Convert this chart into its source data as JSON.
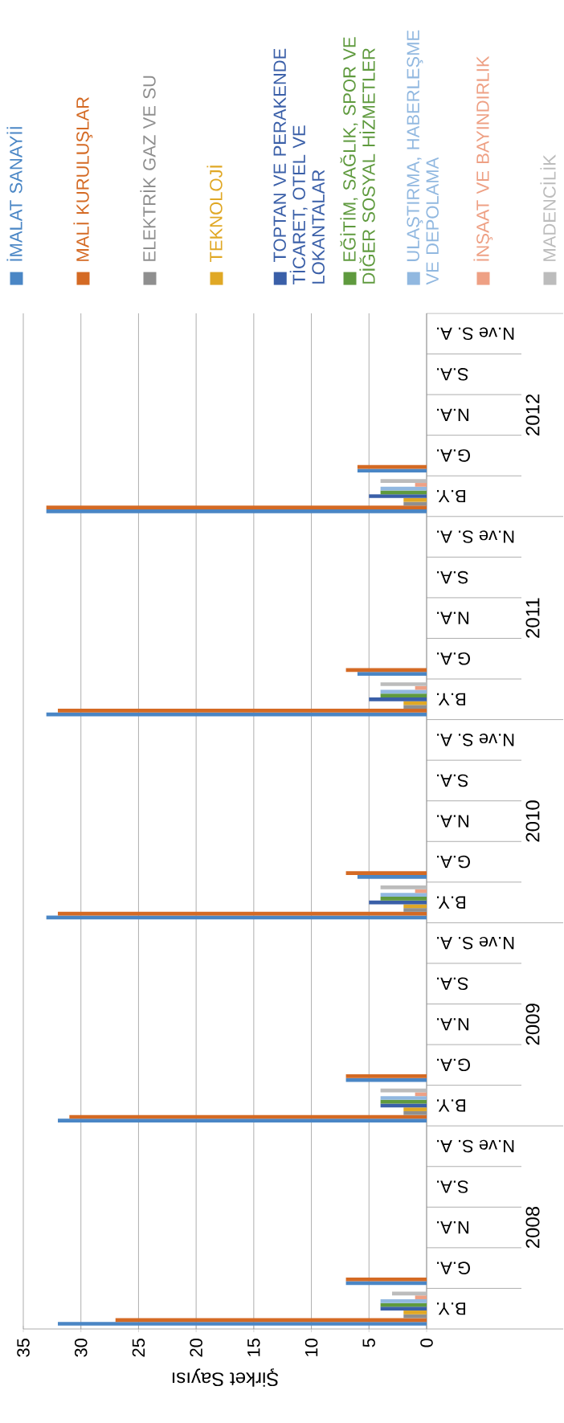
{
  "chart_data": {
    "type": "bar",
    "orientation": "horizontal",
    "xlabel": "Şirket Sayısı",
    "categories": [
      "N.ve S. A.",
      "S.A.",
      "N.A.",
      "G.A.",
      "B.Y.",
      "N.ve S. A.",
      "S.A.",
      "N.A.",
      "G.A.",
      "B.Y.",
      "N.ve S. A.",
      "S.A.",
      "N.A.",
      "G.A.",
      "B.Y.",
      "N.ve S. A.",
      "S.A.",
      "N.A.",
      "G.A.",
      "B.Y.",
      "N.ve S. A.",
      "S.A.",
      "N.A.",
      "G.A.",
      "B.Y."
    ],
    "annotations": [
      "2012",
      "2011",
      "2010",
      "2009",
      "2008"
    ],
    "series": [
      {
        "name": "İMALAT SANAYİİ",
        "color": "#4a86c5",
        "values": [
          null,
          null,
          null,
          6,
          33,
          null,
          null,
          null,
          6,
          33,
          null,
          null,
          null,
          6,
          33,
          null,
          null,
          null,
          7,
          32,
          null,
          null,
          null,
          7,
          32
        ]
      },
      {
        "name": "MALİ KURULUŞLAR",
        "color": "#d46a24",
        "values": [
          null,
          null,
          null,
          6,
          33,
          null,
          null,
          null,
          7,
          32,
          null,
          null,
          null,
          7,
          32,
          null,
          null,
          null,
          7,
          31,
          null,
          null,
          null,
          7,
          27
        ]
      },
      {
        "name": "ELEKTRİK GAZ VE SU",
        "color": "#8f8f8f",
        "values": [
          null,
          null,
          null,
          null,
          2,
          null,
          null,
          null,
          null,
          2,
          null,
          null,
          null,
          null,
          2,
          null,
          null,
          null,
          null,
          2,
          null,
          null,
          null,
          null,
          2
        ]
      },
      {
        "name": "TEKNOLOJİ",
        "color": "#e0a825",
        "values": [
          null,
          null,
          null,
          null,
          2,
          null,
          null,
          null,
          null,
          2,
          null,
          null,
          null,
          null,
          2,
          null,
          null,
          null,
          null,
          2,
          null,
          null,
          null,
          null,
          2
        ]
      },
      {
        "name": "TOPTAN VE PERAKENDE TİCARET, OTEL VE LOKANTALAR",
        "color": "#3a5fa8",
        "values": [
          null,
          null,
          null,
          null,
          5,
          null,
          null,
          null,
          null,
          5,
          null,
          null,
          null,
          null,
          5,
          null,
          null,
          null,
          null,
          4,
          null,
          null,
          null,
          null,
          4
        ]
      },
      {
        "name": "EĞİTİM, SAĞLIK, SPOR VE DİĞER SOSYAL HİZMETLER",
        "color": "#5f9a3e",
        "values": [
          null,
          null,
          null,
          null,
          4,
          null,
          null,
          null,
          null,
          4,
          null,
          null,
          null,
          null,
          4,
          null,
          null,
          null,
          null,
          4,
          null,
          null,
          null,
          null,
          4
        ]
      },
      {
        "name": "ULAŞTIRMA, HABERLEŞME VE DEPOLAMA",
        "color": "#91b8e0",
        "values": [
          null,
          null,
          null,
          null,
          4,
          null,
          null,
          null,
          null,
          4,
          null,
          null,
          null,
          null,
          4,
          null,
          null,
          null,
          null,
          4,
          null,
          null,
          null,
          null,
          4
        ]
      },
      {
        "name": "İNŞAAT VE BAYINDIRLIK",
        "color": "#eea084",
        "values": [
          null,
          null,
          null,
          null,
          1,
          null,
          null,
          null,
          null,
          1,
          null,
          null,
          null,
          null,
          1,
          null,
          null,
          null,
          null,
          1,
          null,
          null,
          null,
          null,
          1
        ]
      },
      {
        "name": "MADENCİLİK",
        "color": "#bcbcbc",
        "values": [
          null,
          null,
          null,
          null,
          4,
          null,
          null,
          null,
          null,
          4,
          null,
          null,
          null,
          null,
          4,
          null,
          null,
          null,
          null,
          4,
          null,
          null,
          null,
          null,
          3
        ]
      }
    ],
    "xlim": [
      35,
      0
    ],
    "xticks": [
      35,
      30,
      25,
      20,
      15,
      10,
      5,
      0
    ],
    "grid": "x",
    "legend": "top"
  }
}
